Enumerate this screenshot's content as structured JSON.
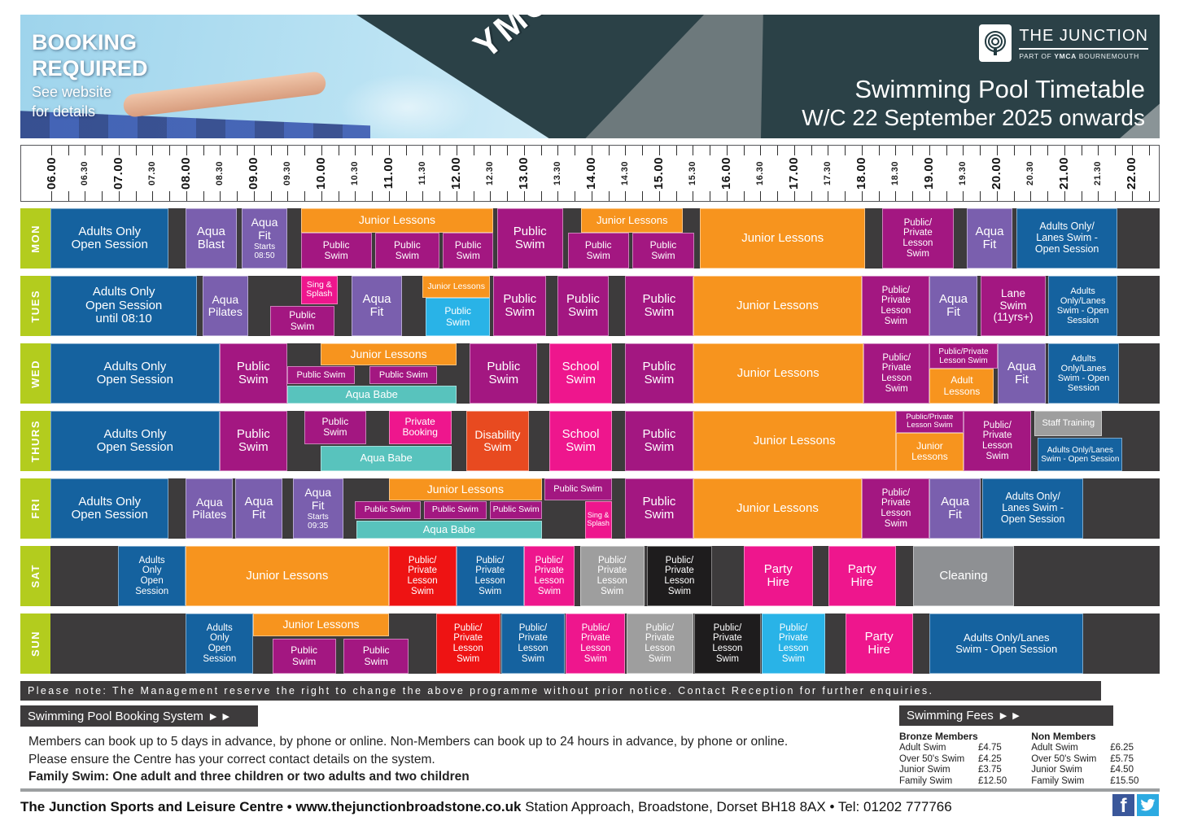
{
  "header": {
    "booking_line1": "BOOKING",
    "booking_line2": "REQUIRED",
    "booking_line3": "See website",
    "booking_line4": "for details",
    "ymca": "YMCA",
    "brand_title": "THE JUNCTION",
    "brand_sub_pre": "PART OF ",
    "brand_sub_bold": "YMCA",
    "brand_sub_post": " BOURNEMOUTH",
    "title_line1": "Swimming Pool Timetable",
    "title_line2": "W/C 22 September 2025 onwards"
  },
  "axis": {
    "labels": [
      "06.00",
      "06.30",
      "07.00",
      "07.30",
      "08.00",
      "08.30",
      "09.00",
      "09.30",
      "10.00",
      "10.30",
      "11.00",
      "11.30",
      "12.00",
      "12.30",
      "13.00",
      "13.30",
      "14.00",
      "14.30",
      "15.00",
      "15.30",
      "16.00",
      "16.30",
      "17.00",
      "17.30",
      "18.00",
      "18.30",
      "19.00",
      "19.30",
      "20.00",
      "20.30",
      "21.00",
      "21.30",
      "22.00"
    ]
  },
  "colors": {
    "blue": "#15629f",
    "magenta": "#a31781",
    "purple": "#7a5fae",
    "orange": "#f7941e",
    "pink": "#ee168d",
    "teal": "#58c3bd",
    "red": "#ee1313",
    "redorange": "#e84a20",
    "cyan": "#29b3e7",
    "gray": "#9e9e9e",
    "cleangray": "#8e9093",
    "black": "#1e1c1d"
  },
  "days": [
    {
      "name": "MON",
      "blocks": [
        {
          "l": "Adults Only\nOpen Session",
          "s": 6,
          "e": 7.75,
          "c": "blue",
          "fs": 15
        },
        {
          "l": "Aqua\nBlast",
          "s": 8,
          "e": 8.75,
          "c": "purple",
          "fs": 15
        },
        {
          "l": "Aqua\nFit",
          "sub": "Starts\n08:50",
          "s": 8.83,
          "e": 9.5,
          "c": "purple",
          "fs": 14
        },
        {
          "l": "Junior Lessons",
          "s": 9.7,
          "e": 12.55,
          "c": "orange",
          "t": 0,
          "h": 0.4,
          "fs": 14
        },
        {
          "l": "Public\nSwim",
          "s": 9.7,
          "e": 10.75,
          "c": "magenta",
          "t": 0.4,
          "h": 0.6,
          "fs": 12
        },
        {
          "l": "Public\nSwim",
          "s": 10.8,
          "e": 11.75,
          "c": "magenta",
          "t": 0.4,
          "h": 0.6,
          "fs": 12
        },
        {
          "l": "Public\nSwim",
          "s": 11.8,
          "e": 12.55,
          "c": "magenta",
          "t": 0.4,
          "h": 0.6,
          "fs": 12
        },
        {
          "l": "Public\nSwim",
          "s": 12.6,
          "e": 13.58,
          "c": "magenta",
          "fs": 15
        },
        {
          "l": "Junior Lessons",
          "s": 13.85,
          "e": 15.35,
          "c": "orange",
          "t": 0,
          "h": 0.4,
          "fs": 13
        },
        {
          "l": "Public\nSwim",
          "s": 13.65,
          "e": 14.55,
          "c": "magenta",
          "t": 0.4,
          "h": 0.6,
          "fs": 12
        },
        {
          "l": "Public\nSwim",
          "s": 14.6,
          "e": 15.52,
          "c": "magenta",
          "t": 0.4,
          "h": 0.6,
          "fs": 12
        },
        {
          "l": "Junior Lessons",
          "s": 15.6,
          "e": 18.05,
          "c": "orange",
          "fs": 15
        },
        {
          "l": "Public/\nPrivate\nLesson\nSwim",
          "s": 18.3,
          "e": 19.35,
          "c": "magenta",
          "fs": 11.5
        },
        {
          "l": "Aqua\nFit",
          "s": 19.55,
          "e": 20.22,
          "c": "purple",
          "fs": 15
        },
        {
          "l": "Adults Only/\nLanes Swim -\nOpen Session",
          "s": 20.28,
          "e": 21.78,
          "c": "blue",
          "fs": 12.5
        }
      ]
    },
    {
      "name": "TUES",
      "blocks": [
        {
          "l": "Adults Only\nOpen Session\nuntil 08:10",
          "s": 6,
          "e": 8.17,
          "c": "blue",
          "fs": 15
        },
        {
          "l": "Aqua\nPilates",
          "s": 8.25,
          "e": 8.92,
          "c": "purple",
          "fs": 14
        },
        {
          "l": "Sing &\nSplash",
          "s": 9.7,
          "e": 10.25,
          "c": "pink",
          "t": 0,
          "h": 0.47,
          "fs": 10.5
        },
        {
          "l": "Public\nSwim",
          "s": 9.25,
          "e": 10.2,
          "c": "magenta",
          "t": 0.5,
          "h": 0.5,
          "fs": 12
        },
        {
          "l": "Aqua\nFit",
          "s": 10.45,
          "e": 11.2,
          "c": "purple",
          "fs": 15
        },
        {
          "l": "Junior Lessons",
          "s": 11.5,
          "e": 12.5,
          "c": "orange",
          "t": 0,
          "h": 0.37,
          "fs": 10.5
        },
        {
          "l": "Public\nSwim",
          "s": 11.55,
          "e": 12.5,
          "c": "cyan",
          "t": 0.37,
          "h": 0.63,
          "fs": 12
        },
        {
          "l": "Public\nSwim",
          "s": 12.55,
          "e": 13.33,
          "c": "magenta",
          "fs": 15
        },
        {
          "l": "Public\nSwim",
          "s": 13.5,
          "e": 14.25,
          "c": "magenta",
          "fs": 15
        },
        {
          "l": "Public\nSwim",
          "s": 14.5,
          "e": 15.5,
          "c": "magenta",
          "fs": 15
        },
        {
          "l": "Junior Lessons",
          "s": 15.5,
          "e": 18,
          "c": "orange",
          "fs": 15
        },
        {
          "l": "Public/\nPrivate\nLesson\nSwim",
          "s": 18,
          "e": 19,
          "c": "magenta",
          "fs": 11.5
        },
        {
          "l": "Aqua\nFit",
          "s": 19,
          "e": 19.7,
          "c": "purple",
          "fs": 15
        },
        {
          "l": "Lane\nSwim\n(11yrs+)",
          "s": 19.75,
          "e": 20.72,
          "c": "magenta",
          "fs": 13.5
        },
        {
          "l": "Adults\nOnly/Lanes\nSwim - Open\nSession",
          "s": 20.75,
          "e": 21.78,
          "c": "blue",
          "fs": 11
        }
      ]
    },
    {
      "name": "WED",
      "blocks": [
        {
          "l": "Adults Only\nOpen Session",
          "s": 6,
          "e": 8.5,
          "c": "blue",
          "fs": 15
        },
        {
          "l": "Public\nSwim",
          "s": 8.5,
          "e": 9.5,
          "c": "magenta",
          "fs": 15
        },
        {
          "l": "Junior Lessons",
          "s": 10,
          "e": 12,
          "c": "orange",
          "t": 0,
          "h": 0.36,
          "fs": 14
        },
        {
          "l": "Public Swim",
          "s": 9.5,
          "e": 10.5,
          "c": "magenta",
          "t": 0.38,
          "h": 0.3,
          "fs": 11
        },
        {
          "l": "Public Swim",
          "s": 10.72,
          "e": 11.72,
          "c": "magenta",
          "t": 0.38,
          "h": 0.3,
          "fs": 11
        },
        {
          "l": "Aqua Babe",
          "s": 9.5,
          "e": 12,
          "c": "teal",
          "t": 0.7,
          "h": 0.3,
          "fs": 13
        },
        {
          "l": "Public\nSwim",
          "s": 12.2,
          "e": 13.2,
          "c": "magenta",
          "fs": 15
        },
        {
          "l": "School\nSwim",
          "s": 13.38,
          "e": 14.3,
          "c": "pink",
          "fs": 15
        },
        {
          "l": "Public\nSwim",
          "s": 14.5,
          "e": 15.5,
          "c": "magenta",
          "fs": 15
        },
        {
          "l": "Junior Lessons",
          "s": 15.5,
          "e": 18.02,
          "c": "orange",
          "fs": 15
        },
        {
          "l": "Public/\nPrivate\nLesson\nSwim",
          "s": 18.02,
          "e": 19,
          "c": "magenta",
          "fs": 11.5
        },
        {
          "l": "Public/Private\nLesson Swim",
          "s": 19,
          "e": 20,
          "c": "magenta",
          "t": 0,
          "h": 0.42,
          "fs": 10
        },
        {
          "l": "Adult\nLessons",
          "s": 19,
          "e": 19.95,
          "c": "orange",
          "t": 0.42,
          "h": 0.58,
          "fs": 12
        },
        {
          "l": "Aqua\nFit",
          "s": 20,
          "e": 20.72,
          "c": "purple",
          "fs": 15
        },
        {
          "l": "Adults\nOnly/Lanes\nSwim - Open\nSession",
          "s": 20.75,
          "e": 21.8,
          "c": "blue",
          "fs": 11
        }
      ]
    },
    {
      "name": "THURS",
      "blocks": [
        {
          "l": "Adults Only\nOpen Session",
          "s": 6,
          "e": 8.5,
          "c": "blue",
          "fs": 15
        },
        {
          "l": "Public\nSwim",
          "s": 8.5,
          "e": 9.5,
          "c": "magenta",
          "fs": 15
        },
        {
          "l": "Public\nSwim",
          "s": 9.75,
          "e": 10.67,
          "c": "magenta",
          "t": 0,
          "h": 0.55,
          "fs": 12
        },
        {
          "l": "Private\nBooking",
          "s": 11,
          "e": 11.93,
          "c": "pink",
          "t": 0,
          "h": 0.55,
          "fs": 12
        },
        {
          "l": "Aqua Babe",
          "s": 10,
          "e": 11.93,
          "c": "teal",
          "t": 0.58,
          "h": 0.42,
          "fs": 13
        },
        {
          "l": "Disability\nSwim",
          "s": 12.15,
          "e": 13.07,
          "c": "redorange",
          "fs": 14
        },
        {
          "l": "School\nSwim",
          "s": 13.38,
          "e": 14.3,
          "c": "pink",
          "fs": 15
        },
        {
          "l": "Public\nSwim",
          "s": 14.5,
          "e": 15.5,
          "c": "magenta",
          "fs": 15
        },
        {
          "l": "Junior Lessons",
          "s": 15.5,
          "e": 18.5,
          "c": "orange",
          "fs": 15
        },
        {
          "l": "Public/Private\nLesson Swim",
          "s": 18.5,
          "e": 19.5,
          "c": "magenta",
          "t": 0,
          "h": 0.36,
          "fs": 9.5
        },
        {
          "l": "Junior\nLessons",
          "s": 18.5,
          "e": 19.5,
          "c": "orange",
          "t": 0.36,
          "h": 0.64,
          "fs": 12
        },
        {
          "l": "Public/\nPrivate\nLesson\nSwim",
          "s": 19.5,
          "e": 20.5,
          "c": "magenta",
          "fs": 11.5
        },
        {
          "l": "Staff Training",
          "s": 20.55,
          "e": 21.55,
          "c": "gray",
          "t": 0,
          "h": 0.42,
          "fs": 11
        },
        {
          "l": "Adults Only/Lanes\nSwim - Open Session",
          "s": 20.6,
          "e": 21.85,
          "c": "blue",
          "t": 0.45,
          "h": 0.55,
          "fs": 10
        }
      ]
    },
    {
      "name": "FRI",
      "blocks": [
        {
          "l": "Adults Only\nOpen Session",
          "s": 6,
          "e": 7.75,
          "c": "blue",
          "fs": 15
        },
        {
          "l": "Aqua\nPilates",
          "s": 8,
          "e": 8.7,
          "c": "purple",
          "fs": 14
        },
        {
          "l": "Aqua\nFit",
          "s": 8.73,
          "e": 9.43,
          "c": "purple",
          "fs": 15
        },
        {
          "l": "Aqua\nFit",
          "sub": "Starts\n09:35",
          "s": 9.58,
          "e": 10.33,
          "c": "purple",
          "fs": 14
        },
        {
          "l": "Junior Lessons",
          "s": 11,
          "e": 13.27,
          "c": "orange",
          "t": 0,
          "h": 0.36,
          "fs": 14
        },
        {
          "l": "Public Swim",
          "s": 13.3,
          "e": 14.3,
          "c": "magenta",
          "t": 0,
          "h": 0.36,
          "fs": 11
        },
        {
          "l": "Public Swim",
          "s": 10.5,
          "e": 11.47,
          "c": "magenta",
          "t": 0.38,
          "h": 0.3,
          "fs": 10.5
        },
        {
          "l": "Public Swim",
          "s": 11.52,
          "e": 12.45,
          "c": "magenta",
          "t": 0.38,
          "h": 0.3,
          "fs": 10.5
        },
        {
          "l": "Public Swim",
          "s": 12.5,
          "e": 13.27,
          "c": "magenta",
          "t": 0.38,
          "h": 0.3,
          "fs": 10.5
        },
        {
          "l": "Aqua Babe",
          "s": 10.52,
          "e": 13.27,
          "c": "teal",
          "t": 0.7,
          "h": 0.3,
          "fs": 13
        },
        {
          "l": "Sing &\nSplash",
          "s": 13.9,
          "e": 14.3,
          "c": "pink",
          "t": 0.38,
          "h": 0.62,
          "fs": 9
        },
        {
          "l": "Public\nSwim",
          "s": 14.5,
          "e": 15.5,
          "c": "magenta",
          "fs": 15
        },
        {
          "l": "Junior Lessons",
          "s": 15.5,
          "e": 18,
          "c": "orange",
          "fs": 15
        },
        {
          "l": "Public/\nPrivate\nLesson\nSwim",
          "s": 18,
          "e": 19,
          "c": "magenta",
          "fs": 11.5
        },
        {
          "l": "Aqua\nFit",
          "s": 19,
          "e": 19.75,
          "c": "purple",
          "fs": 15
        },
        {
          "l": "Adults Only/\nLanes Swim -\nOpen Session",
          "s": 19.78,
          "e": 21.27,
          "c": "blue",
          "fs": 12.5
        }
      ]
    },
    {
      "name": "SAT",
      "blocks": [
        {
          "l": "Adults\nOnly\nOpen\nSession",
          "s": 7,
          "e": 8,
          "c": "blue",
          "fs": 11.5
        },
        {
          "l": "Junior Lessons",
          "s": 8,
          "e": 11,
          "c": "orange",
          "fs": 15
        },
        {
          "l": "Public/\nPrivate\nLesson\nSwim",
          "s": 11,
          "e": 12,
          "c": "red",
          "fs": 11.5
        },
        {
          "l": "Public/\nPrivate\nLesson\nSwim",
          "s": 12,
          "e": 13,
          "c": "blue",
          "fs": 11.5
        },
        {
          "l": "Public/\nPrivate\nLesson\nSwim",
          "s": 13,
          "e": 13.75,
          "c": "pink",
          "fs": 11.5
        },
        {
          "l": "Public/\nPrivate\nLesson\nSwim",
          "s": 13.83,
          "e": 14.78,
          "c": "gray",
          "fs": 11.5
        },
        {
          "l": "Public/\nPrivate\nLesson\nSwim",
          "s": 14.82,
          "e": 15.78,
          "c": "black",
          "fs": 11.5
        },
        {
          "l": "Party\nHire",
          "s": 16.25,
          "e": 17.27,
          "c": "pink",
          "fs": 15
        },
        {
          "l": "Party\nHire",
          "s": 17.5,
          "e": 18.5,
          "c": "pink",
          "fs": 15
        },
        {
          "l": "Cleaning",
          "s": 18.75,
          "e": 20.25,
          "c": "cleangray",
          "fs": 15
        }
      ]
    },
    {
      "name": "SUN",
      "blocks": [
        {
          "l": "Adults\nOnly\nOpen\nSession",
          "s": 8,
          "e": 9,
          "c": "blue",
          "fs": 11.5
        },
        {
          "l": "Junior Lessons",
          "s": 9,
          "e": 11,
          "c": "orange",
          "t": 0,
          "h": 0.38,
          "fs": 14
        },
        {
          "l": "Public\nSwim",
          "s": 9.28,
          "e": 10.22,
          "c": "magenta",
          "t": 0.42,
          "h": 0.58,
          "fs": 12
        },
        {
          "l": "Public\nSwim",
          "s": 10.33,
          "e": 11.3,
          "c": "magenta",
          "t": 0.42,
          "h": 0.58,
          "fs": 12
        },
        {
          "l": "Public/\nPrivate\nLesson\nSwim",
          "s": 11.7,
          "e": 12.65,
          "c": "red",
          "fs": 11.5
        },
        {
          "l": "Public/\nPrivate\nLesson\nSwim",
          "s": 12.67,
          "e": 13.6,
          "c": "blue",
          "fs": 11.5
        },
        {
          "l": "Public/\nPrivate\nLesson\nSwim",
          "s": 13.62,
          "e": 14.5,
          "c": "pink",
          "fs": 11.5
        },
        {
          "l": "Public/\nPrivate\nLesson\nSwim",
          "s": 14.52,
          "e": 15.5,
          "c": "gray",
          "fs": 11.5
        },
        {
          "l": "Public/\nPrivate\nLesson\nSwim",
          "s": 15.52,
          "e": 16.5,
          "c": "black",
          "fs": 11.5
        },
        {
          "l": "Public/\nPrivate\nLesson\nSwim",
          "s": 16.52,
          "e": 17.45,
          "c": "cyan",
          "fs": 11.5
        },
        {
          "l": "Party\nHire",
          "s": 17.75,
          "e": 18.75,
          "c": "pink",
          "fs": 15
        },
        {
          "l": "Adults Only/Lanes\nSwim - Open Session",
          "s": 19,
          "e": 21.27,
          "c": "blue",
          "fs": 13
        }
      ]
    }
  ],
  "note": {
    "text": "Please note: The Management reserve the right to change the above programme without prior notice.  Contact Reception for further enquiries."
  },
  "booking": {
    "header": "Swimming Pool Booking System",
    "arrows": "▶ ▶",
    "line1": "Members can book up to 5 days in advance, by phone or online.  Non-Members can book up to 24 hours in advance, by phone or online.",
    "line2": "Please ensure the Centre has your correct contact details on the system.",
    "line3": "Family Swim: One adult and three children or two adults and two children"
  },
  "fees": {
    "header": "Swimming Fees",
    "arrows": "▶ ▶",
    "groups": [
      {
        "title": "Bronze Members",
        "items": [
          [
            "Adult Swim",
            "£4.75"
          ],
          [
            "Over 50's Swim",
            "£4.25"
          ],
          [
            "Junior Swim",
            "£3.75"
          ],
          [
            "Family Swim",
            "£12.50"
          ]
        ]
      },
      {
        "title": "Non Members",
        "items": [
          [
            "Adult Swim",
            "£6.25"
          ],
          [
            "Over 50's Swim",
            "£5.75"
          ],
          [
            "Junior Swim",
            "£4.50"
          ],
          [
            "Family Swim",
            "£15.50"
          ]
        ]
      }
    ]
  },
  "footer": {
    "bold": "The Junction Sports and Leisure Centre • www.thejunctionbroadstone.co.uk",
    "regular": " Station Approach, Broadstone, Dorset BH18 8AX • Tel: 01202 777766"
  }
}
